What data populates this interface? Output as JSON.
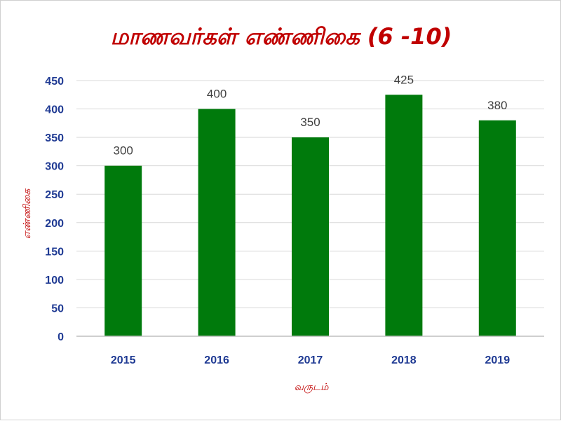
{
  "chart_data": {
    "type": "bar",
    "title": "மாணவர்கள் எண்ணிகை (6 -10)",
    "xlabel": "வருடம்",
    "ylabel": "எண்ணிகை",
    "categories": [
      "2015",
      "2016",
      "2017",
      "2018",
      "2019"
    ],
    "values": [
      300,
      400,
      350,
      425,
      380
    ],
    "ylim": [
      0,
      450
    ],
    "yticks": [
      0,
      50,
      100,
      150,
      200,
      250,
      300,
      350,
      400,
      450
    ],
    "grid": true,
    "legend": "none",
    "bar_color": "#007a0c"
  }
}
